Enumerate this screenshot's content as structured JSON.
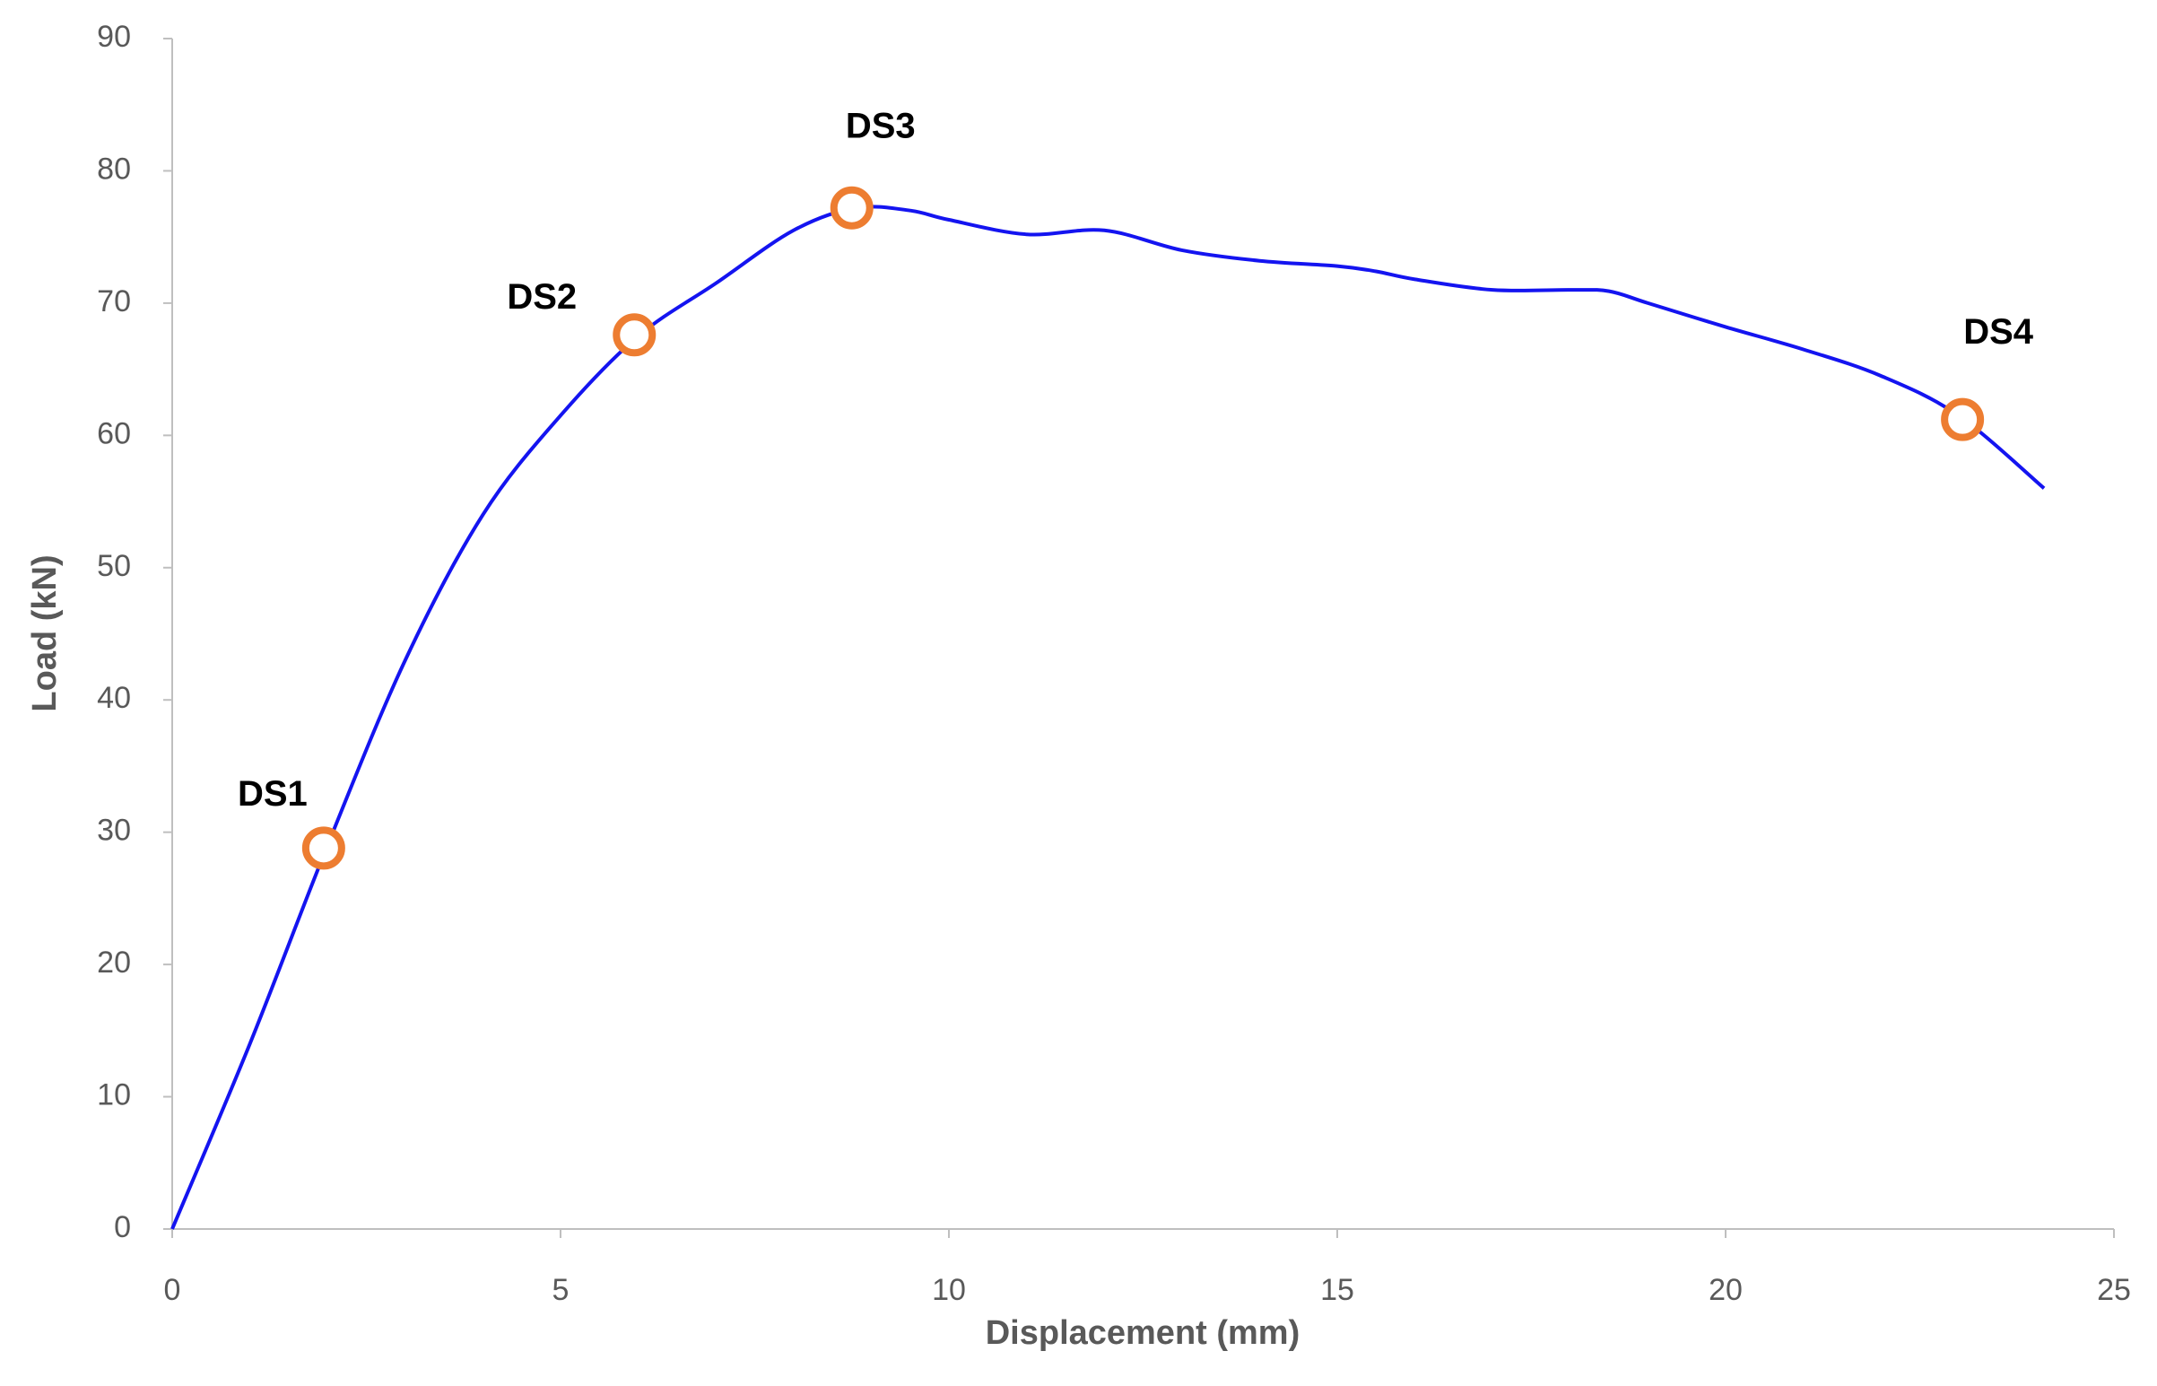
{
  "chart_data": {
    "type": "line",
    "x_label": "Displacement (mm)",
    "y_label": "Load (kN)",
    "series": [
      {
        "color": "#1414f0",
        "x": [
          0,
          1,
          2,
          3,
          4,
          5,
          6,
          7,
          8,
          8.8,
          9.5,
          10,
          11,
          12,
          13,
          14,
          15,
          15.5,
          16,
          17,
          18,
          18.5,
          19,
          20,
          21,
          22,
          23,
          24.1
        ],
        "values": [
          0,
          14,
          29,
          43,
          54,
          61.5,
          67.5,
          71.5,
          75.5,
          77.2,
          77,
          76.3,
          75.2,
          75.5,
          74,
          73.2,
          72.8,
          72.4,
          71.8,
          71,
          71,
          70.9,
          70,
          68.2,
          66.5,
          64.5,
          61.5,
          56
        ]
      }
    ],
    "points": [
      {
        "label": "DS1",
        "x": 1.95,
        "y": 28.8
      },
      {
        "label": "DS2",
        "x": 5.95,
        "y": 67.6
      },
      {
        "label": "DS3",
        "x": 8.75,
        "y": 77.2
      },
      {
        "label": "DS4",
        "x": 23.05,
        "y": 61.2
      }
    ],
    "point_color": "#ed7d31",
    "xlim": [
      0,
      25
    ],
    "xticks": [
      0,
      5,
      10,
      15,
      20,
      25
    ],
    "ylim": [
      0,
      90
    ],
    "yticks": [
      0,
      10,
      20,
      30,
      40,
      50,
      60,
      70,
      80,
      90
    ],
    "grid": false
  }
}
